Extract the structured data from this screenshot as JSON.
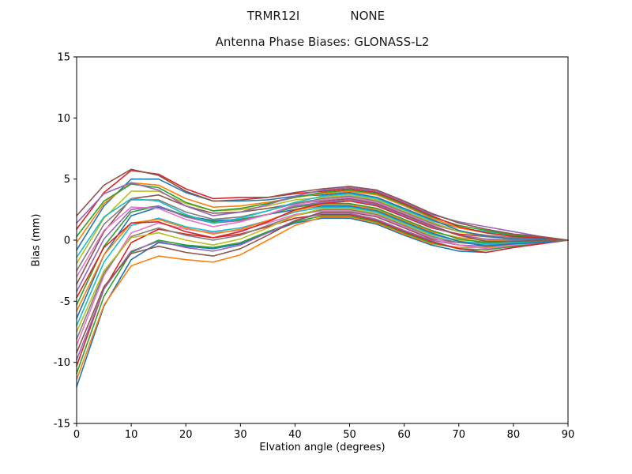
{
  "header": {
    "antenna": "TRMR12I",
    "radome": "NONE"
  },
  "chart_data": {
    "type": "line",
    "title": "Antenna Phase Biases: GLONASS-L2",
    "xlabel": "Elvation angle (degrees)",
    "ylabel": "Bias (mm)",
    "xlim": [
      0,
      90
    ],
    "ylim": [
      -15,
      15
    ],
    "xticks": [
      0,
      10,
      20,
      30,
      40,
      50,
      60,
      70,
      80,
      90
    ],
    "yticks": [
      -15,
      -10,
      -5,
      0,
      5,
      10,
      15
    ],
    "grid": false,
    "legend": "none",
    "x": [
      0,
      5,
      10,
      15,
      20,
      25,
      30,
      35,
      40,
      45,
      50,
      55,
      60,
      65,
      70,
      75,
      80,
      85,
      90
    ],
    "series": [
      [
        -12.0,
        -5.4,
        -1.6,
        -0.2,
        -0.5,
        -0.7,
        -0.3,
        0.6,
        1.4,
        1.8,
        1.8,
        1.3,
        0.4,
        -0.4,
        -0.9,
        -1.0,
        -0.6,
        -0.3,
        0.0
      ],
      [
        -11.4,
        -5.3,
        -2.1,
        -1.3,
        -1.6,
        -1.8,
        -1.2,
        0.0,
        1.2,
        1.9,
        1.9,
        1.4,
        0.5,
        -0.3,
        -0.6,
        -0.6,
        -0.3,
        -0.2,
        0.0
      ],
      [
        -10.9,
        -4.6,
        -1.0,
        0.0,
        -0.4,
        -0.6,
        -0.2,
        0.7,
        1.5,
        2.0,
        2.0,
        1.5,
        0.6,
        -0.2,
        -0.7,
        -0.8,
        -0.5,
        -0.2,
        0.0
      ],
      [
        -10.3,
        -4.0,
        -0.2,
        0.9,
        0.5,
        0.2,
        0.5,
        1.1,
        1.8,
        2.1,
        2.1,
        1.6,
        0.7,
        -0.1,
        -0.7,
        -1.0,
        -0.6,
        -0.3,
        0.0
      ],
      [
        -9.8,
        -4.0,
        -0.9,
        -0.1,
        -0.6,
        -0.9,
        -0.4,
        0.6,
        1.6,
        2.2,
        2.2,
        1.7,
        0.8,
        0.0,
        -0.4,
        -0.5,
        -0.3,
        -0.1,
        0.0
      ],
      [
        -9.2,
        -3.8,
        -1.1,
        -0.5,
        -1.0,
        -1.3,
        -0.7,
        0.4,
        1.6,
        2.3,
        2.3,
        1.9,
        1.0,
        0.1,
        -0.2,
        -0.2,
        -0.1,
        0.0,
        0.0
      ],
      [
        -8.6,
        -2.9,
        0.6,
        1.4,
        0.9,
        0.6,
        0.8,
        1.4,
        2.1,
        2.4,
        2.4,
        2.0,
        1.1,
        0.2,
        -0.4,
        -0.7,
        -0.4,
        -0.2,
        0.0
      ],
      [
        -8.1,
        -2.7,
        0.3,
        1.0,
        0.4,
        0.0,
        0.4,
        1.2,
        2.0,
        2.5,
        2.5,
        2.1,
        1.2,
        0.3,
        -0.2,
        -0.4,
        -0.2,
        -0.1,
        0.0
      ],
      [
        -7.5,
        -2.5,
        0.2,
        0.6,
        0.0,
        -0.4,
        0.1,
        1.0,
        2.0,
        2.6,
        2.6,
        2.2,
        1.3,
        0.4,
        0.0,
        -0.1,
        -0.1,
        0.0,
        0.0
      ],
      [
        -7.0,
        -1.8,
        1.2,
        1.8,
        1.1,
        0.7,
        1.0,
        1.6,
        2.3,
        2.7,
        2.7,
        2.3,
        1.4,
        0.5,
        -0.1,
        -0.3,
        -0.2,
        -0.1,
        0.0
      ],
      [
        -6.4,
        -1.2,
        2.0,
        2.7,
        2.0,
        1.6,
        1.7,
        2.1,
        2.5,
        2.8,
        2.8,
        2.4,
        1.5,
        0.6,
        -0.1,
        -0.5,
        -0.3,
        -0.2,
        0.0
      ],
      [
        -5.8,
        -1.2,
        1.4,
        1.7,
        1.0,
        0.5,
        0.9,
        1.6,
        2.4,
        2.9,
        2.9,
        2.5,
        1.6,
        0.7,
        0.2,
        0.0,
        0.0,
        0.0,
        0.0
      ],
      [
        -5.3,
        -0.5,
        2.3,
        2.8,
        2.0,
        1.5,
        1.7,
        2.1,
        2.7,
        3.0,
        3.0,
        2.6,
        1.7,
        0.8,
        0.1,
        -0.2,
        -0.1,
        -0.1,
        0.0
      ],
      [
        -4.7,
        -0.6,
        1.4,
        1.5,
        0.7,
        0.2,
        0.7,
        1.5,
        2.5,
        3.0,
        3.2,
        2.8,
        1.9,
        1.0,
        0.5,
        0.3,
        0.2,
        0.1,
        0.0
      ],
      [
        -4.2,
        0.1,
        2.5,
        2.8,
        1.9,
        1.4,
        1.6,
        2.1,
        2.8,
        3.1,
        3.3,
        2.9,
        2.0,
        1.1,
        0.4,
        0.1,
        0.0,
        0.0,
        0.0
      ],
      [
        -3.6,
        0.7,
        3.4,
        3.7,
        2.8,
        2.2,
        2.3,
        2.6,
        3.0,
        3.2,
        3.4,
        3.0,
        2.1,
        1.2,
        0.4,
        -0.1,
        -0.1,
        0.0,
        0.0
      ],
      [
        -3.0,
        0.8,
        2.7,
        2.6,
        1.7,
        1.1,
        1.5,
        2.1,
        2.9,
        3.3,
        3.5,
        3.1,
        2.2,
        1.3,
        0.7,
        0.4,
        0.2,
        0.1,
        0.0
      ],
      [
        -2.5,
        1.3,
        3.3,
        3.3,
        2.3,
        1.7,
        1.9,
        2.4,
        3.0,
        3.4,
        3.6,
        3.2,
        2.3,
        1.4,
        0.7,
        0.4,
        0.2,
        0.1,
        0.0
      ],
      [
        -1.9,
        1.8,
        4.0,
        4.0,
        3.0,
        2.4,
        2.5,
        2.8,
        3.3,
        3.5,
        3.7,
        3.3,
        2.4,
        1.5,
        0.7,
        0.3,
        0.1,
        0.1,
        0.0
      ],
      [
        -1.4,
        1.9,
        3.4,
        3.2,
        2.1,
        1.4,
        1.8,
        2.4,
        3.1,
        3.6,
        3.8,
        3.4,
        2.5,
        1.6,
        1.0,
        0.7,
        0.4,
        0.2,
        0.0
      ],
      [
        -0.8,
        2.8,
        5.0,
        5.0,
        3.9,
        3.2,
        3.2,
        3.3,
        3.6,
        3.7,
        3.9,
        3.5,
        2.6,
        1.7,
        0.8,
        0.3,
        0.1,
        0.1,
        0.0
      ],
      [
        -0.2,
        3.0,
        4.7,
        4.5,
        3.4,
        2.7,
        2.8,
        3.1,
        3.5,
        3.8,
        4.0,
        3.7,
        2.8,
        1.8,
        1.0,
        0.6,
        0.3,
        0.2,
        0.0
      ],
      [
        0.3,
        3.2,
        4.6,
        4.3,
        3.1,
        2.4,
        2.6,
        3.0,
        3.5,
        3.9,
        4.1,
        3.8,
        2.9,
        1.9,
        1.2,
        0.8,
        0.4,
        0.2,
        0.0
      ],
      [
        0.9,
        3.9,
        5.7,
        5.4,
        4.2,
        3.4,
        3.5,
        3.5,
        3.8,
        4.0,
        4.2,
        3.9,
        3.0,
        2.0,
        1.1,
        0.6,
        0.3,
        0.2,
        0.0
      ],
      [
        1.4,
        3.8,
        4.7,
        4.1,
        2.8,
        2.0,
        2.3,
        2.9,
        3.6,
        4.1,
        4.3,
        4.0,
        3.1,
        2.1,
        1.5,
        1.1,
        0.7,
        0.3,
        0.0
      ],
      [
        2.0,
        4.5,
        5.8,
        5.3,
        4.0,
        3.2,
        3.3,
        3.5,
        3.9,
        4.2,
        4.4,
        4.1,
        3.2,
        2.2,
        1.4,
        0.9,
        0.5,
        0.3,
        0.0
      ]
    ],
    "palette": [
      "#1f77b4",
      "#ff7f0e",
      "#2ca02c",
      "#d62728",
      "#9467bd",
      "#8c564b",
      "#e377c2",
      "#7f7f7f",
      "#bcbd22",
      "#17becf"
    ]
  }
}
